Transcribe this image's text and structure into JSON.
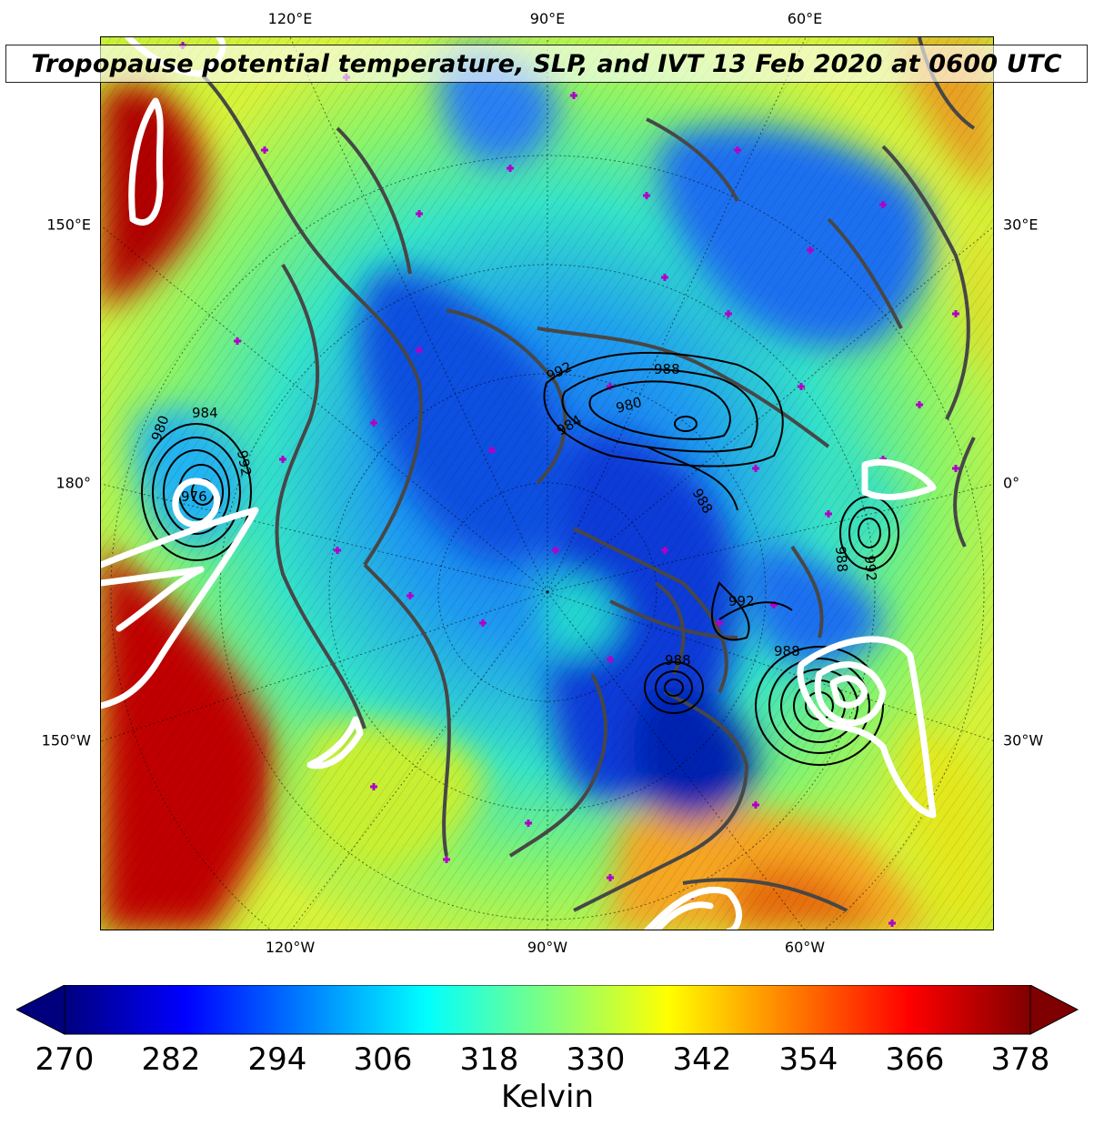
{
  "title": "Tropopause potential temperature, SLP, and IVT 13 Feb 2020 at 0600 UTC",
  "map": {
    "labels_top": [
      "120°E",
      "90°E",
      "60°E"
    ],
    "labels_bottom": [
      "120°W",
      "90°W",
      "60°W"
    ],
    "labels_left": [
      "150°E",
      "180°",
      "150°W"
    ],
    "labels_right": [
      "30°E",
      "0°",
      "30°W"
    ],
    "pressure_contour_labels": [
      "984",
      "980",
      "992",
      "976",
      "992",
      "988",
      "980",
      "984",
      "988",
      "992",
      "988",
      "988",
      "992",
      "988"
    ],
    "colors": {
      "coastline": "#474747",
      "slp_contour": "#000000",
      "ivt_contour": "#ffffff",
      "station_marker": "#b000c8"
    }
  },
  "colorbar": {
    "label": "Kelvin",
    "ticks": [
      "270",
      "282",
      "294",
      "306",
      "318",
      "330",
      "342",
      "354",
      "366",
      "378"
    ],
    "colormap": "jet"
  }
}
